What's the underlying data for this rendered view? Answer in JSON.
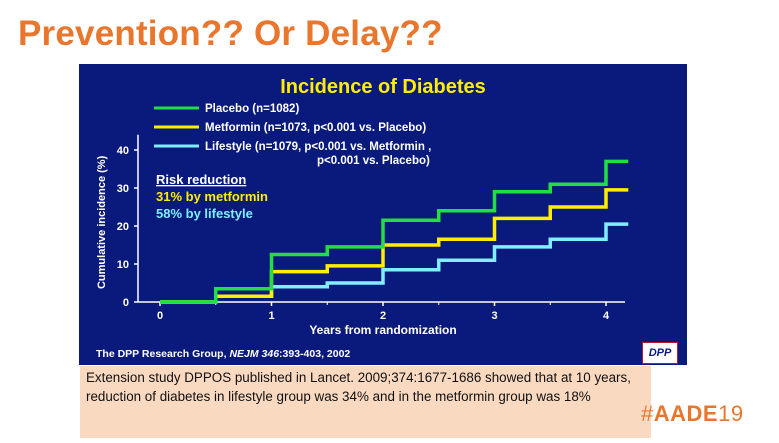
{
  "slide": {
    "title": "Prevention?? Or Delay??",
    "note": "Extension study DPPOS published in Lancet. 2009;374:1677-1686 showed that at 10 years, reduction of diabetes in lifestyle group was 34% and in the metformin group was 18%",
    "brand_hash": "#",
    "brand_bold": "AADE",
    "brand_light": "19",
    "logo_text": "DPP"
  },
  "colors": {
    "title": "#E8762D",
    "panel": "#0A1A7C",
    "placebo": "#22DD44",
    "metformin": "#FFEE00",
    "lifestyle": "#7FEFFF",
    "chart_title": "#FFEE00",
    "note_bg": "#FAD9C1"
  },
  "chart_data": {
    "type": "line",
    "title": "Incidence of Diabetes",
    "xlabel": "Years from randomization",
    "ylabel": "Cumulative incidence (%)",
    "xlim": [
      0,
      4.2
    ],
    "ylim": [
      0,
      45
    ],
    "xticks": [
      0,
      1,
      2,
      3,
      4
    ],
    "yticks": [
      0,
      10,
      20,
      30,
      40
    ],
    "step": true,
    "grid": false,
    "legend_position": "top-left",
    "citation_prefix": "The DPP Research Group, ",
    "citation_journal": "NEJM 346",
    "citation_suffix": ":393-403, 2002",
    "annotation": {
      "heading": "Risk reduction",
      "lines": [
        {
          "text": "31% by metformin",
          "series": "metformin"
        },
        {
          "text": "58% by lifestyle",
          "series": "lifestyle"
        }
      ]
    },
    "series": [
      {
        "name": "Placebo (n=1082)",
        "key": "placebo",
        "x": [
          0,
          0.5,
          1,
          1.5,
          2,
          2.5,
          3,
          3.5,
          4,
          4.2
        ],
        "y": [
          0,
          3.5,
          12.5,
          14.5,
          21.5,
          24,
          29,
          31,
          37,
          37
        ]
      },
      {
        "name": "Metformin (n=1073, p<0.001 vs. Placebo)",
        "key": "metformin",
        "x": [
          0,
          0.5,
          1,
          1.5,
          2,
          2.5,
          3,
          3.5,
          4,
          4.2
        ],
        "y": [
          0,
          1.5,
          8,
          9.5,
          15,
          16.5,
          22,
          25,
          29.5,
          29.5
        ]
      },
      {
        "name": "Lifestyle (n=1079, p<0.001 vs. Metformin ,\np<0.001 vs. Placebo)",
        "key": "lifestyle",
        "x": [
          0,
          0.5,
          1,
          1.5,
          2,
          2.5,
          3,
          3.5,
          4,
          4.2
        ],
        "y": [
          0,
          1.5,
          4,
          5,
          8.5,
          11,
          14.5,
          16.5,
          20.5,
          20.5
        ]
      }
    ]
  }
}
